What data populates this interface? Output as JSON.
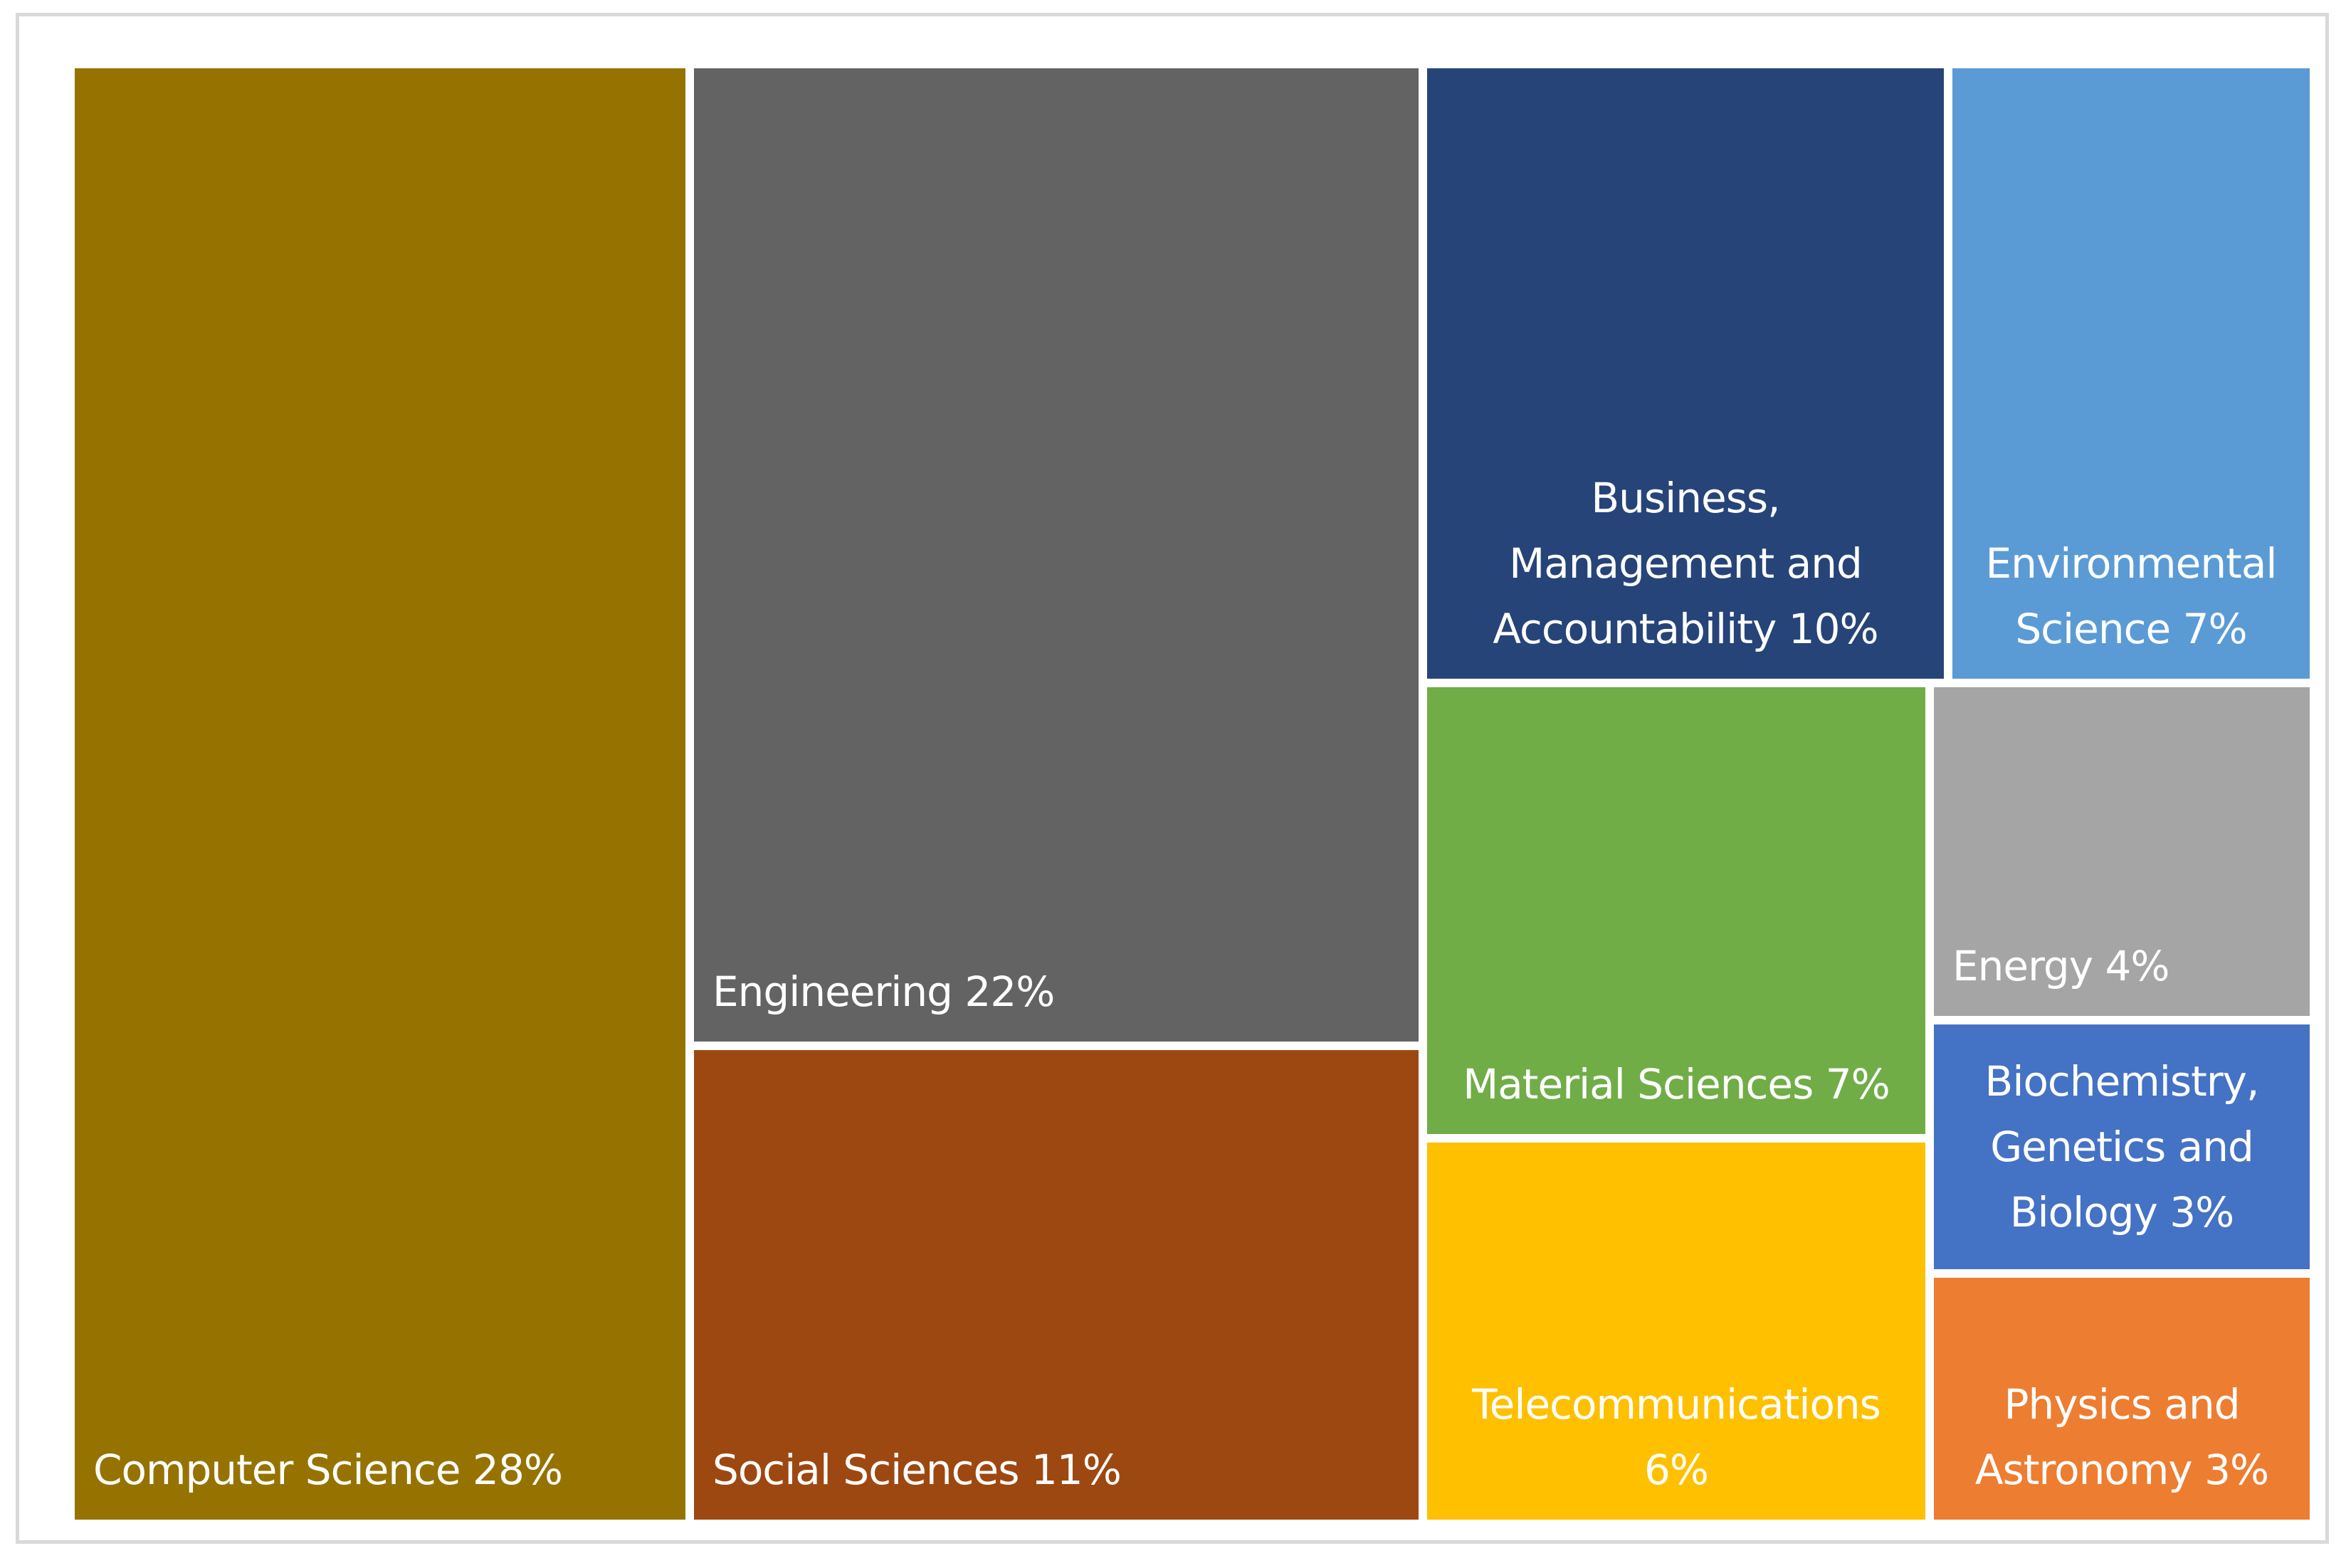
{
  "chart_data": {
    "type": "treemap",
    "title": "",
    "items": [
      {
        "category": "Computer Science",
        "value": 28,
        "label": "Computer Science 28%",
        "color": "#967300"
      },
      {
        "category": "Engineering",
        "value": 22,
        "label": "Engineering 22%",
        "color": "#636363"
      },
      {
        "category": "Social Sciences",
        "value": 11,
        "label": "Social Sciences 11%",
        "color": "#9e4811"
      },
      {
        "category": "Business, Management and Accountability",
        "value": 10,
        "label": "Business, Management and Accountability 10%",
        "color": "#264478"
      },
      {
        "category": "Environmental Science",
        "value": 7,
        "label": "Environmental Science 7%",
        "color": "#5b9bd5"
      },
      {
        "category": "Material Sciences",
        "value": 7,
        "label": "Material Sciences 7%",
        "color": "#70ad47"
      },
      {
        "category": "Telecommunications",
        "value": 6,
        "label": "Telecommunications 6%",
        "color": "#ffc000"
      },
      {
        "category": "Energy",
        "value": 4,
        "label": "Energy 4%",
        "color": "#a5a5a5"
      },
      {
        "category": "Biochemistry, Genetics and Biology",
        "value": 3,
        "label": "Biochemistry, Genetics and Biology 3%",
        "color": "#4472c4"
      },
      {
        "category": "Physics and Astronomy",
        "value": 3,
        "label": "Physics and Astronomy 3%",
        "color": "#ed7d31"
      }
    ]
  }
}
